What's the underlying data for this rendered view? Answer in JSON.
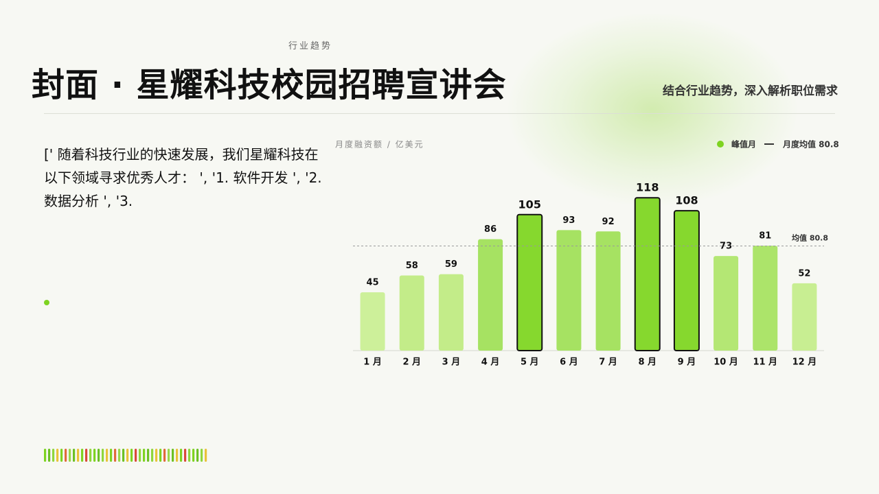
{
  "eyebrow": "行业趋势",
  "title": "封面 · 星耀科技校园招聘宣讲会",
  "subtitle": "结合行业趋势，深入解析职位需求",
  "body": "[' 随着科技行业的快速发展，我们星耀科技在以下领域寻求优秀人才： ', '1. 软件开发 ', '2. 数据分析 ', '3.",
  "chart_data": {
    "type": "bar",
    "y_label": "月度融资额 / 亿美元",
    "categories": [
      "1 月",
      "2 月",
      "3 月",
      "4 月",
      "5 月",
      "6 月",
      "7 月",
      "8 月",
      "9 月",
      "10 月",
      "11 月",
      "12 月"
    ],
    "values": [
      45,
      58,
      59,
      86,
      105,
      93,
      92,
      118,
      108,
      73,
      81,
      52
    ],
    "colors": [
      "#cdf09a",
      "#c3ec89",
      "#c3ec89",
      "#a6e262",
      "#86d82e",
      "#a6e262",
      "#a6e262",
      "#86d82e",
      "#86d82e",
      "#b4e774",
      "#ace46a",
      "#c8ee92"
    ],
    "highlighted": [
      false,
      false,
      false,
      false,
      true,
      false,
      false,
      true,
      true,
      false,
      false,
      false
    ],
    "peak_legend": "峰值月",
    "peak_color": "#7ed321",
    "mean": {
      "value": 80.8,
      "label": "均值 80.8",
      "legend": "月度均值 80.8"
    },
    "ylim": [
      0,
      125
    ]
  }
}
